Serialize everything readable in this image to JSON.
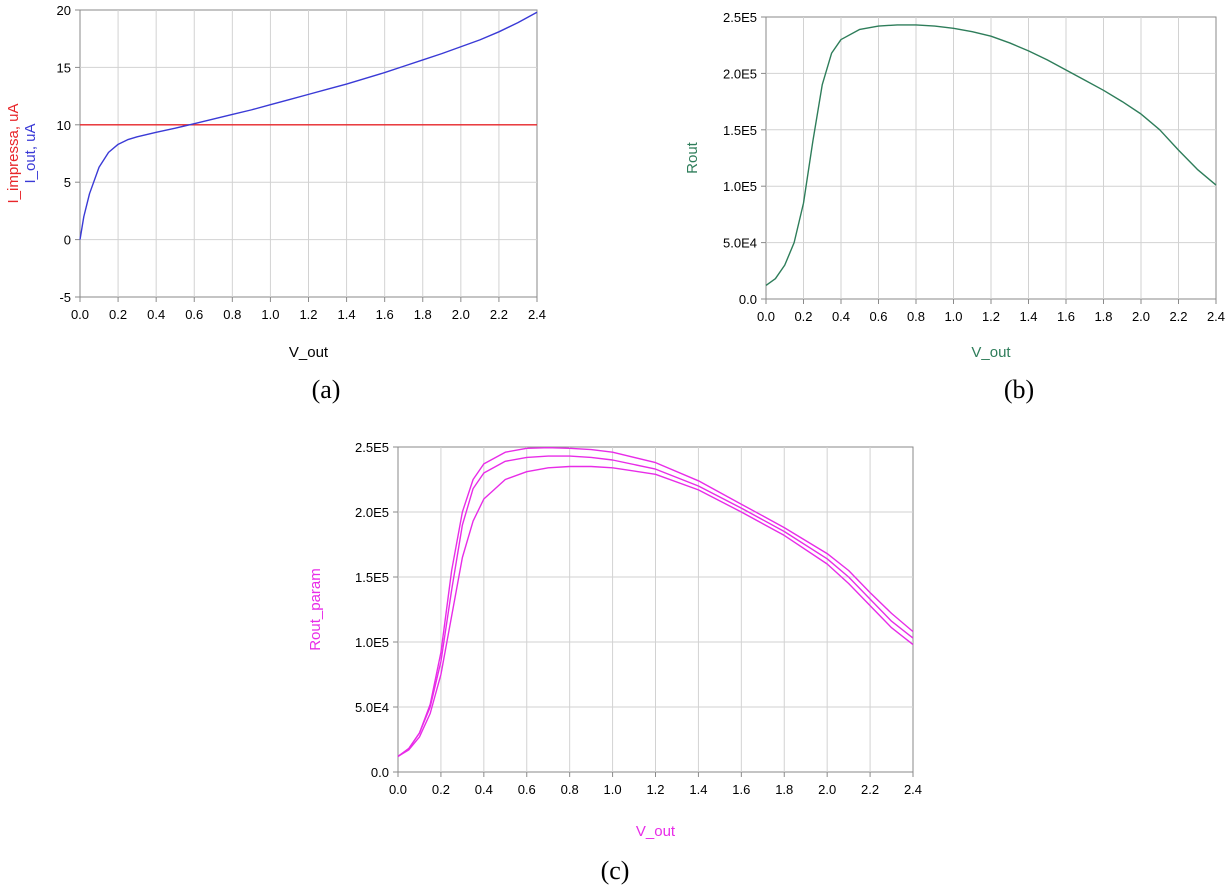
{
  "chart_data": [
    {
      "id": "a",
      "type": "line",
      "caption": "(a)",
      "xlabel": "V_out",
      "ylabel_parts": [
        {
          "text": "I_impressa, uA",
          "color": "#e8262a"
        },
        {
          "text": "I_out, uA",
          "color": "#3a3ad6"
        }
      ],
      "xlim": [
        0,
        2.4
      ],
      "ylim": [
        -5,
        20
      ],
      "x_ticks": [
        "0.0",
        "0.2",
        "0.4",
        "0.6",
        "0.8",
        "1.0",
        "1.2",
        "1.4",
        "1.6",
        "1.8",
        "2.0",
        "2.2",
        "2.4"
      ],
      "y_ticks": [
        "-5",
        "0",
        "5",
        "10",
        "15",
        "20"
      ],
      "grid": true,
      "series": [
        {
          "color": "#e8262a",
          "x": [
            0,
            2.4
          ],
          "y": [
            10,
            10
          ]
        },
        {
          "color": "#3a3ad6",
          "x": [
            0,
            0.02,
            0.05,
            0.1,
            0.15,
            0.2,
            0.25,
            0.3,
            0.4,
            0.5,
            0.6,
            0.7,
            0.8,
            0.9,
            1.0,
            1.1,
            1.2,
            1.3,
            1.4,
            1.5,
            1.6,
            1.7,
            1.8,
            1.9,
            2.0,
            2.1,
            2.2,
            2.3,
            2.4
          ],
          "y": [
            0,
            2.0,
            4.0,
            6.3,
            7.6,
            8.3,
            8.7,
            8.95,
            9.35,
            9.7,
            10.1,
            10.5,
            10.9,
            11.3,
            11.75,
            12.2,
            12.65,
            13.1,
            13.55,
            14.05,
            14.55,
            15.1,
            15.65,
            16.2,
            16.8,
            17.4,
            18.1,
            18.9,
            19.8
          ]
        }
      ]
    },
    {
      "id": "b",
      "type": "line",
      "caption": "(b)",
      "xlabel": "V_out",
      "ylabel": "Rout",
      "label_color": "#2e7d5a",
      "xlim": [
        0,
        2.4
      ],
      "ylim": [
        0,
        250000
      ],
      "x_ticks": [
        "0.0",
        "0.2",
        "0.4",
        "0.6",
        "0.8",
        "1.0",
        "1.2",
        "1.4",
        "1.6",
        "1.8",
        "2.0",
        "2.2",
        "2.4"
      ],
      "y_ticks": [
        "0.0",
        "5.0E4",
        "1.0E5",
        "1.5E5",
        "2.0E5",
        "2.5E5"
      ],
      "grid": true,
      "series": [
        {
          "color": "#2e7d5a",
          "x": [
            0,
            0.05,
            0.1,
            0.15,
            0.2,
            0.25,
            0.3,
            0.35,
            0.4,
            0.5,
            0.6,
            0.7,
            0.8,
            0.9,
            1.0,
            1.1,
            1.2,
            1.3,
            1.4,
            1.5,
            1.6,
            1.7,
            1.8,
            1.9,
            2.0,
            2.1,
            2.2,
            2.3,
            2.4
          ],
          "y": [
            12000,
            18000,
            30000,
            50000,
            85000,
            140000,
            190000,
            218000,
            230000,
            239000,
            242000,
            243000,
            243000,
            242000,
            240000,
            237000,
            233000,
            227000,
            220000,
            212000,
            203000,
            194000,
            185000,
            175000,
            164000,
            150000,
            132000,
            115000,
            101000
          ]
        }
      ]
    },
    {
      "id": "c",
      "type": "line",
      "caption": "(c)",
      "xlabel": "V_out",
      "ylabel": "Rout_param",
      "label_color": "#e82ce8",
      "xlim": [
        0,
        2.4
      ],
      "ylim": [
        0,
        250000
      ],
      "x_ticks": [
        "0.0",
        "0.2",
        "0.4",
        "0.6",
        "0.8",
        "1.0",
        "1.2",
        "1.4",
        "1.6",
        "1.8",
        "2.0",
        "2.2",
        "2.4"
      ],
      "y_ticks": [
        "0.0",
        "5.0E4",
        "1.0E5",
        "1.5E5",
        "2.0E5",
        "2.5E5"
      ],
      "grid": true,
      "series": [
        {
          "color": "#e82ce8",
          "x": [
            0,
            0.05,
            0.1,
            0.15,
            0.2,
            0.25,
            0.3,
            0.35,
            0.4,
            0.5,
            0.6,
            0.7,
            0.8,
            0.9,
            1.0,
            1.2,
            1.4,
            1.6,
            1.8,
            2.0,
            2.1,
            2.2,
            2.3,
            2.4
          ],
          "y": [
            12000,
            18000,
            30000,
            52000,
            92000,
            155000,
            200000,
            225000,
            237000,
            246000,
            249000,
            249500,
            249000,
            248000,
            246000,
            238000,
            224000,
            206000,
            188000,
            168000,
            155000,
            138000,
            122000,
            108000
          ]
        },
        {
          "color": "#e82ce8",
          "x": [
            0,
            0.05,
            0.1,
            0.15,
            0.2,
            0.25,
            0.3,
            0.35,
            0.4,
            0.5,
            0.6,
            0.7,
            0.8,
            0.9,
            1.0,
            1.2,
            1.4,
            1.6,
            1.8,
            2.0,
            2.1,
            2.2,
            2.3,
            2.4
          ],
          "y": [
            12000,
            18000,
            30000,
            50000,
            85000,
            140000,
            190000,
            218000,
            230000,
            239000,
            242000,
            243000,
            243000,
            242000,
            240000,
            233000,
            220000,
            203000,
            185000,
            164000,
            150000,
            133000,
            116000,
            103000
          ]
        },
        {
          "color": "#e82ce8",
          "x": [
            0,
            0.05,
            0.1,
            0.15,
            0.2,
            0.25,
            0.3,
            0.35,
            0.4,
            0.5,
            0.6,
            0.7,
            0.8,
            0.9,
            1.0,
            1.2,
            1.4,
            1.6,
            1.8,
            2.0,
            2.1,
            2.2,
            2.3,
            2.4
          ],
          "y": [
            12000,
            17000,
            27000,
            45000,
            75000,
            120000,
            165000,
            193000,
            210000,
            225000,
            231000,
            234000,
            235000,
            235000,
            234000,
            229000,
            217000,
            200000,
            182000,
            160000,
            145000,
            128000,
            111000,
            98000
          ]
        }
      ]
    }
  ]
}
